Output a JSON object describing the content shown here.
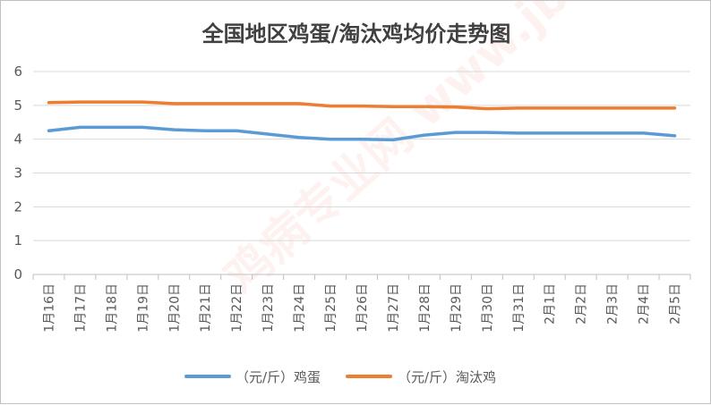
{
  "chart_data": {
    "type": "line",
    "title": "全国地区鸡蛋/淘汰鸡均价走势图",
    "xlabel": "",
    "ylabel": "",
    "ylim": [
      0,
      6
    ],
    "yticks": [
      0,
      1,
      2,
      3,
      4,
      5,
      6
    ],
    "grid": true,
    "legend": "bottom",
    "categories": [
      "1月16日",
      "1月17日",
      "1月18日",
      "1月19日",
      "1月20日",
      "1月21日",
      "1月22日",
      "1月23日",
      "1月24日",
      "1月25日",
      "1月26日",
      "1月27日",
      "1月28日",
      "1月29日",
      "1月30日",
      "1月31日",
      "2月1日",
      "2月2日",
      "2月3日",
      "2月4日",
      "2月5日"
    ],
    "series": [
      {
        "name": "（元/斤）鸡蛋",
        "color": "#5b9bd5",
        "values": [
          4.25,
          4.35,
          4.35,
          4.35,
          4.28,
          4.25,
          4.25,
          4.15,
          4.05,
          4.0,
          4.0,
          3.98,
          4.12,
          4.2,
          4.2,
          4.18,
          4.18,
          4.18,
          4.18,
          4.18,
          4.1
        ]
      },
      {
        "name": "（元/斤）淘汰鸡",
        "color": "#ed7d31",
        "values": [
          5.08,
          5.1,
          5.1,
          5.1,
          5.05,
          5.05,
          5.05,
          5.05,
          5.05,
          4.98,
          4.98,
          4.96,
          4.96,
          4.95,
          4.9,
          4.92,
          4.92,
          4.92,
          4.92,
          4.92,
          4.92
        ]
      }
    ],
    "watermark": "鸡病专业网 www.jbzyw.com"
  }
}
